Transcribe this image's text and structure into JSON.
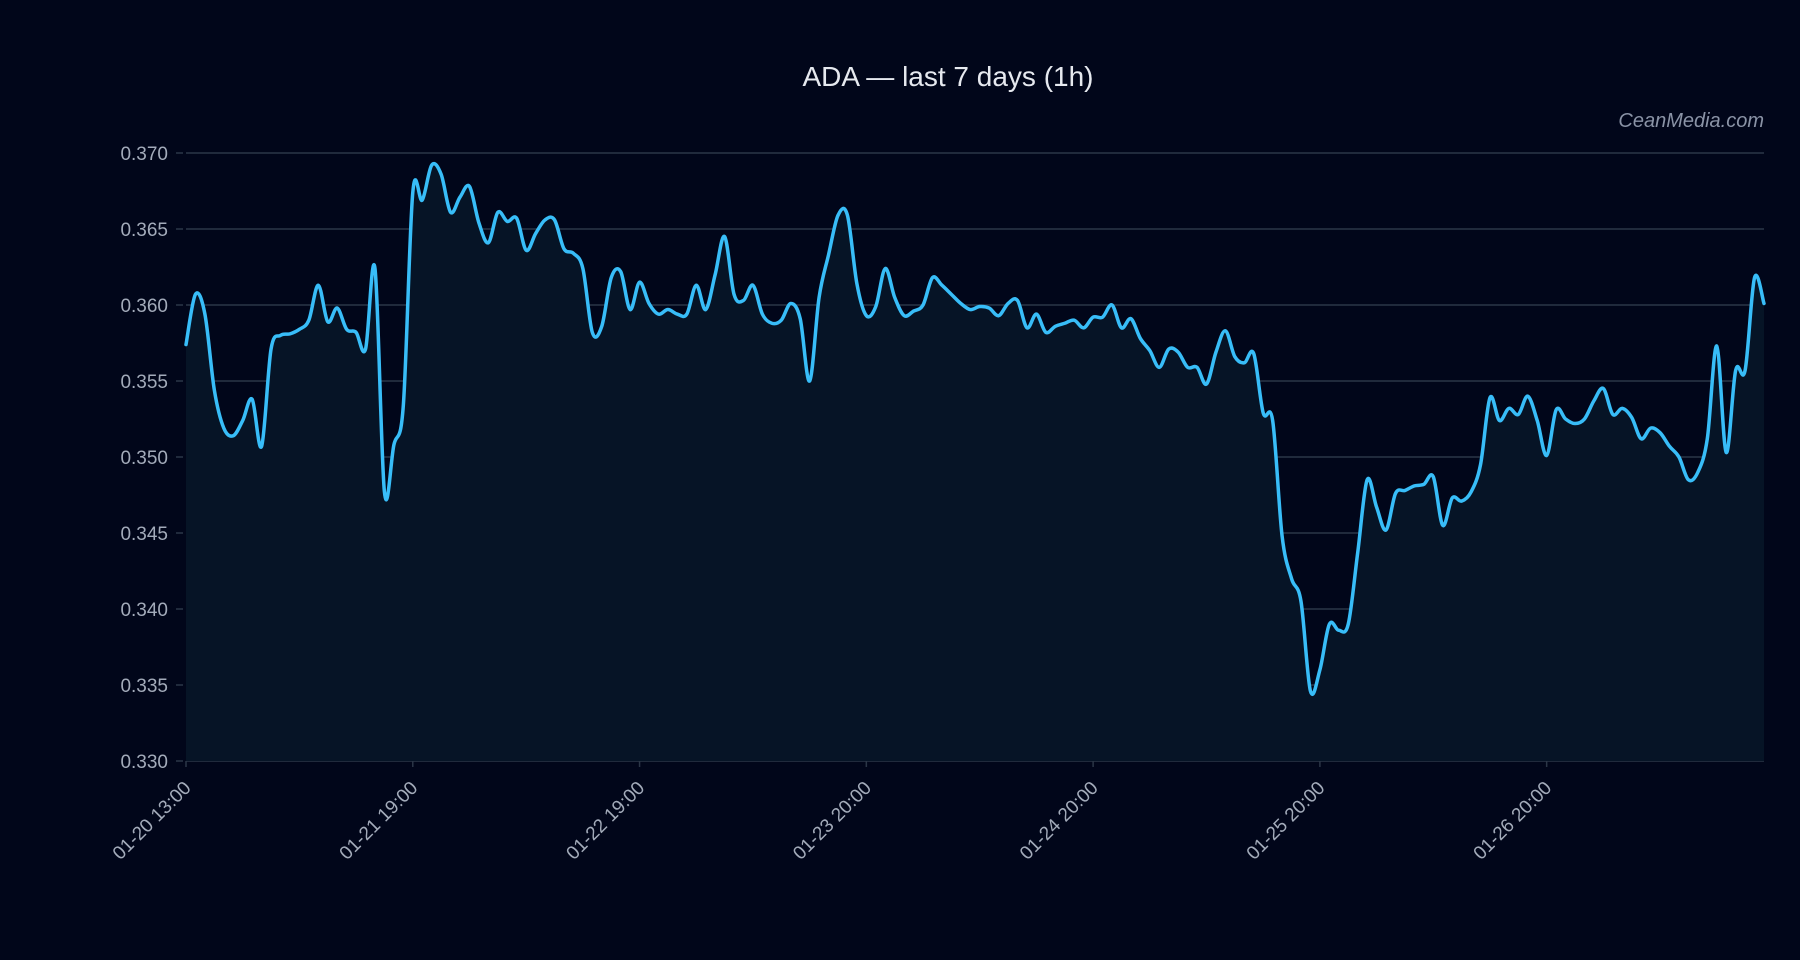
{
  "chart_data": {
    "type": "line",
    "title": "ADA — last 7 days (1h)",
    "watermark": "CeanMedia.com",
    "xlabel": "",
    "ylabel": "",
    "ylim": [
      0.33,
      0.37
    ],
    "yticks": [
      "0.330",
      "0.335",
      "0.340",
      "0.345",
      "0.350",
      "0.355",
      "0.360",
      "0.365",
      "0.370"
    ],
    "xtick_labels": [
      "01-20 13:00",
      "01-21 19:00",
      "01-22 19:00",
      "01-23 20:00",
      "01-24 20:00",
      "01-25 20:00",
      "01-26 20:00"
    ],
    "xtick_every_points": 24,
    "grid": true,
    "colors": {
      "background": "#01061a",
      "line": "#38bdf8",
      "fill": "#061426",
      "grid": "#2b3647"
    },
    "series": [
      {
        "values": [
          0.3574,
          0.3607,
          0.3594,
          0.3544,
          0.3519,
          0.3514,
          0.3524,
          0.3538,
          0.3507,
          0.3571,
          0.358,
          0.3581,
          0.3584,
          0.359,
          0.3613,
          0.3589,
          0.3598,
          0.3584,
          0.3582,
          0.3571,
          0.3624,
          0.3477,
          0.3508,
          0.3534,
          0.3674,
          0.3669,
          0.3692,
          0.3686,
          0.3661,
          0.3671,
          0.3678,
          0.3654,
          0.3641,
          0.3661,
          0.3655,
          0.3657,
          0.3636,
          0.3647,
          0.3656,
          0.3656,
          0.3637,
          0.3634,
          0.3624,
          0.3582,
          0.3586,
          0.3618,
          0.3622,
          0.3597,
          0.3615,
          0.3601,
          0.3594,
          0.3597,
          0.3594,
          0.3594,
          0.3613,
          0.3597,
          0.362,
          0.3645,
          0.3607,
          0.3603,
          0.3613,
          0.3594,
          0.3588,
          0.359,
          0.3601,
          0.3591,
          0.355,
          0.3605,
          0.3633,
          0.3659,
          0.3659,
          0.3614,
          0.3593,
          0.3599,
          0.3624,
          0.3605,
          0.3593,
          0.3596,
          0.36,
          0.3618,
          0.3613,
          0.3607,
          0.3601,
          0.3597,
          0.3599,
          0.3598,
          0.3593,
          0.3601,
          0.3603,
          0.3585,
          0.3594,
          0.3582,
          0.3586,
          0.3588,
          0.359,
          0.3585,
          0.3592,
          0.3592,
          0.36,
          0.3585,
          0.3591,
          0.3578,
          0.357,
          0.3559,
          0.3571,
          0.3569,
          0.3559,
          0.3559,
          0.3548,
          0.3569,
          0.3583,
          0.3566,
          0.3562,
          0.3568,
          0.3529,
          0.3524,
          0.3448,
          0.342,
          0.3405,
          0.3346,
          0.336,
          0.339,
          0.3386,
          0.339,
          0.3437,
          0.3485,
          0.3467,
          0.3452,
          0.3476,
          0.3478,
          0.3481,
          0.3482,
          0.3487,
          0.3455,
          0.3473,
          0.3471,
          0.3477,
          0.3495,
          0.3539,
          0.3524,
          0.3532,
          0.3528,
          0.354,
          0.3524,
          0.3501,
          0.3531,
          0.3525,
          0.3522,
          0.3525,
          0.3537,
          0.3545,
          0.3528,
          0.3532,
          0.3526,
          0.3512,
          0.3519,
          0.3516,
          0.3507,
          0.35,
          0.3485,
          0.349,
          0.3512,
          0.3573,
          0.3503,
          0.3557,
          0.3557,
          0.3618,
          0.3601
        ]
      }
    ]
  }
}
